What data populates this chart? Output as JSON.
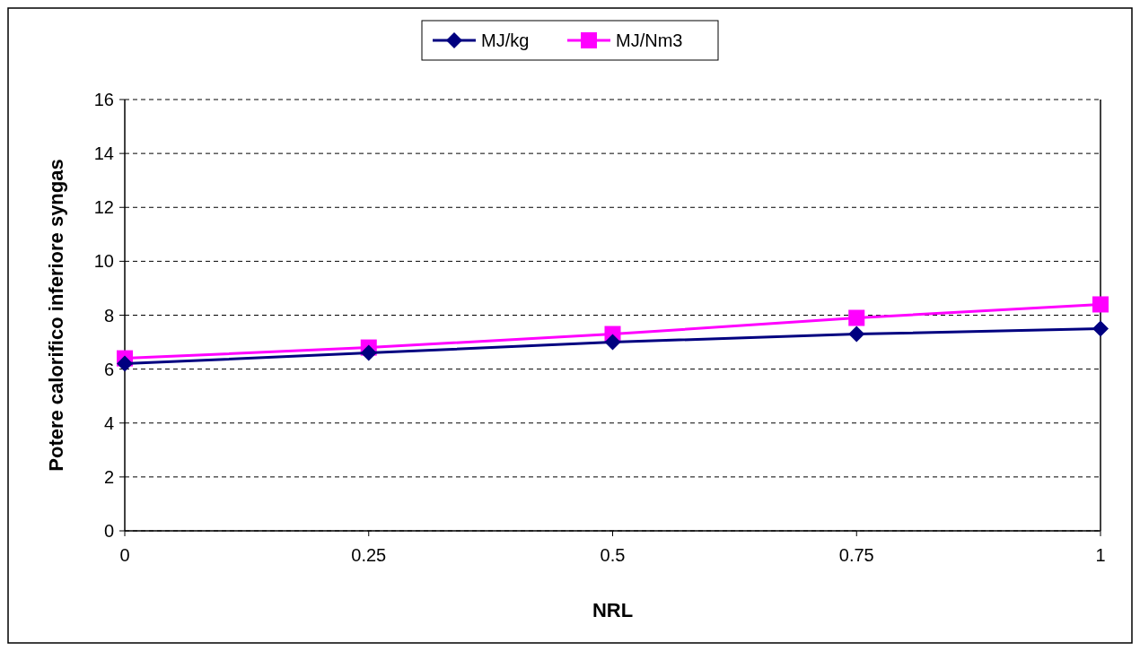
{
  "chart_data": {
    "type": "line",
    "xlabel": "NRL",
    "ylabel": "Potere calorifico inferiore syngas",
    "x": [
      0,
      0.25,
      0.5,
      0.75,
      1
    ],
    "xlim": [
      0,
      1
    ],
    "xticks": [
      0,
      0.25,
      0.5,
      0.75,
      1
    ],
    "ylim": [
      0,
      16
    ],
    "yticks": [
      0,
      2,
      4,
      6,
      8,
      10,
      12,
      14,
      16
    ],
    "grid": "y",
    "legend": "top",
    "series": [
      {
        "name": "MJ/kg",
        "color": "#000080",
        "marker": "diamond",
        "values": [
          6.2,
          6.6,
          7.0,
          7.3,
          7.5
        ]
      },
      {
        "name": "MJ/Nm3",
        "color": "#ff00ff",
        "marker": "square",
        "values": [
          6.4,
          6.8,
          7.3,
          7.9,
          8.4
        ]
      }
    ]
  }
}
